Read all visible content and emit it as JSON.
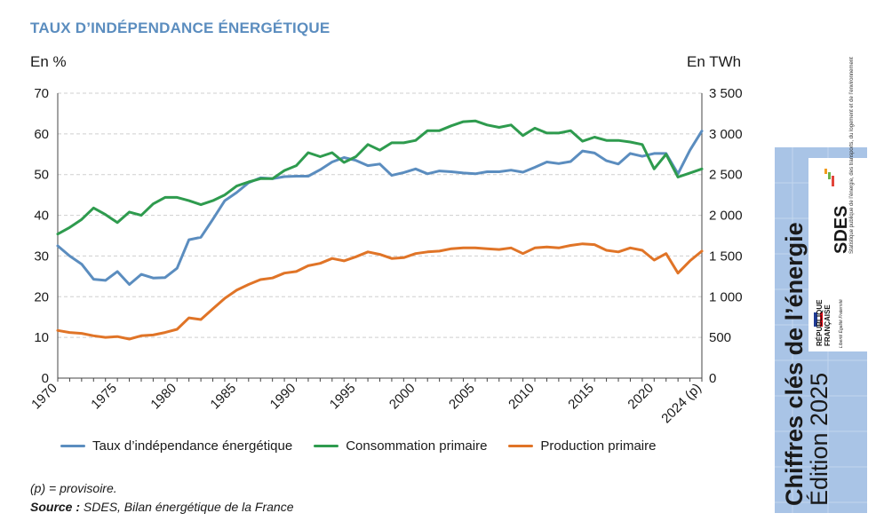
{
  "header": {
    "title": "TAUX D’INDÉPENDANCE ÉNERGÉTIQUE",
    "left_unit": "En %",
    "right_unit": "En TWh"
  },
  "chart_data": {
    "type": "line",
    "title": "TAUX D’INDÉPENDANCE ÉNERGÉTIQUE",
    "ylabel_left": "En %",
    "ylabel_right": "En TWh",
    "ylim_left": [
      0,
      70
    ],
    "ylim_right": [
      0,
      3500
    ],
    "y_ticks_left": [
      "0",
      "10",
      "20",
      "30",
      "40",
      "50",
      "60",
      "70"
    ],
    "y_ticks_right": [
      "0",
      "500",
      "1 000",
      "1 500",
      "2 000",
      "2 500",
      "3 000",
      "3 500"
    ],
    "x_tick_labels": [
      "1970",
      "1975",
      "1980",
      "1985",
      "1990",
      "1995",
      "2000",
      "2005",
      "2010",
      "2015",
      "2020",
      "2024 (p)"
    ],
    "x_tick_years": [
      1970,
      1975,
      1980,
      1985,
      1990,
      1995,
      2000,
      2005,
      2010,
      2015,
      2020,
      2024
    ],
    "grid": true,
    "legend_position": "bottom",
    "x": [
      1970,
      1971,
      1972,
      1973,
      1974,
      1975,
      1976,
      1977,
      1978,
      1979,
      1980,
      1981,
      1982,
      1983,
      1984,
      1985,
      1986,
      1987,
      1988,
      1989,
      1990,
      1991,
      1992,
      1993,
      1994,
      1995,
      1996,
      1997,
      1998,
      1999,
      2000,
      2001,
      2002,
      2003,
      2004,
      2005,
      2006,
      2007,
      2008,
      2009,
      2010,
      2011,
      2012,
      2013,
      2014,
      2015,
      2016,
      2017,
      2018,
      2019,
      2020,
      2021,
      2022,
      2023,
      2024
    ],
    "series": [
      {
        "name": "Taux d’indépendance énergétique",
        "axis": "left",
        "color": "#5b8dbf",
        "values": [
          32.5,
          30,
          28,
          24.3,
          24,
          26.2,
          23,
          25.5,
          24.6,
          24.7,
          27,
          34,
          34.6,
          39,
          43.6,
          45.6,
          48,
          49.2,
          49,
          49.5,
          49.6,
          49.6,
          51.2,
          53.1,
          54.2,
          53.5,
          52.2,
          52.6,
          49.8,
          50.5,
          51.4,
          50.2,
          50.9,
          50.7,
          50.4,
          50.2,
          50.7,
          50.7,
          51.1,
          50.6,
          51.8,
          53.1,
          52.7,
          53.2,
          55.8,
          55.3,
          53.4,
          52.6,
          55.2,
          54.5,
          55.2,
          55.2,
          50.2,
          56,
          60.7
        ]
      },
      {
        "name": "Consommation primaire",
        "axis": "right",
        "color": "#2e9b4e",
        "values": [
          1770,
          1850,
          1950,
          2090,
          2010,
          1910,
          2040,
          2000,
          2140,
          2220,
          2220,
          2180,
          2130,
          2180,
          2250,
          2360,
          2410,
          2450,
          2450,
          2550,
          2610,
          2770,
          2720,
          2770,
          2650,
          2720,
          2870,
          2800,
          2890,
          2890,
          2920,
          3040,
          3040,
          3100,
          3150,
          3160,
          3110,
          3080,
          3110,
          2980,
          3070,
          3010,
          3010,
          3040,
          2910,
          2960,
          2920,
          2920,
          2900,
          2870,
          2570,
          2750,
          2470,
          2520,
          2570
        ]
      },
      {
        "name": "Production primaire",
        "axis": "right",
        "color": "#e07427",
        "values": [
          585,
          560,
          550,
          520,
          500,
          510,
          480,
          520,
          530,
          560,
          600,
          740,
          720,
          850,
          980,
          1080,
          1150,
          1210,
          1230,
          1290,
          1310,
          1380,
          1410,
          1470,
          1440,
          1490,
          1550,
          1520,
          1470,
          1480,
          1530,
          1550,
          1560,
          1590,
          1600,
          1600,
          1590,
          1580,
          1600,
          1530,
          1600,
          1610,
          1600,
          1630,
          1650,
          1640,
          1570,
          1550,
          1600,
          1570,
          1450,
          1530,
          1290,
          1440,
          1560
        ]
      }
    ]
  },
  "legend": {
    "items": [
      {
        "label": "Taux d’indépendance énergétique",
        "color": "#5b8dbf"
      },
      {
        "label": "Consommation primaire",
        "color": "#2e9b4e"
      },
      {
        "label": "Production primaire",
        "color": "#e07427"
      }
    ]
  },
  "footer": {
    "note": "(p) = provisoire.",
    "source_label": "Source :",
    "source_text": " SDES, Bilan énergétique de la France"
  },
  "side_panel": {
    "title": "Chiffres clés de l’énergie",
    "edition": "Édition 2025",
    "sdes": "SDES",
    "sdes_subtitle": "Statistique publique de l’énergie, des transports, du logement et de l’environnement",
    "republique_line1": "RÉPUBLIQUE",
    "republique_line2": "FRANÇAISE",
    "motto": "Liberté Égalité Fraternité"
  }
}
